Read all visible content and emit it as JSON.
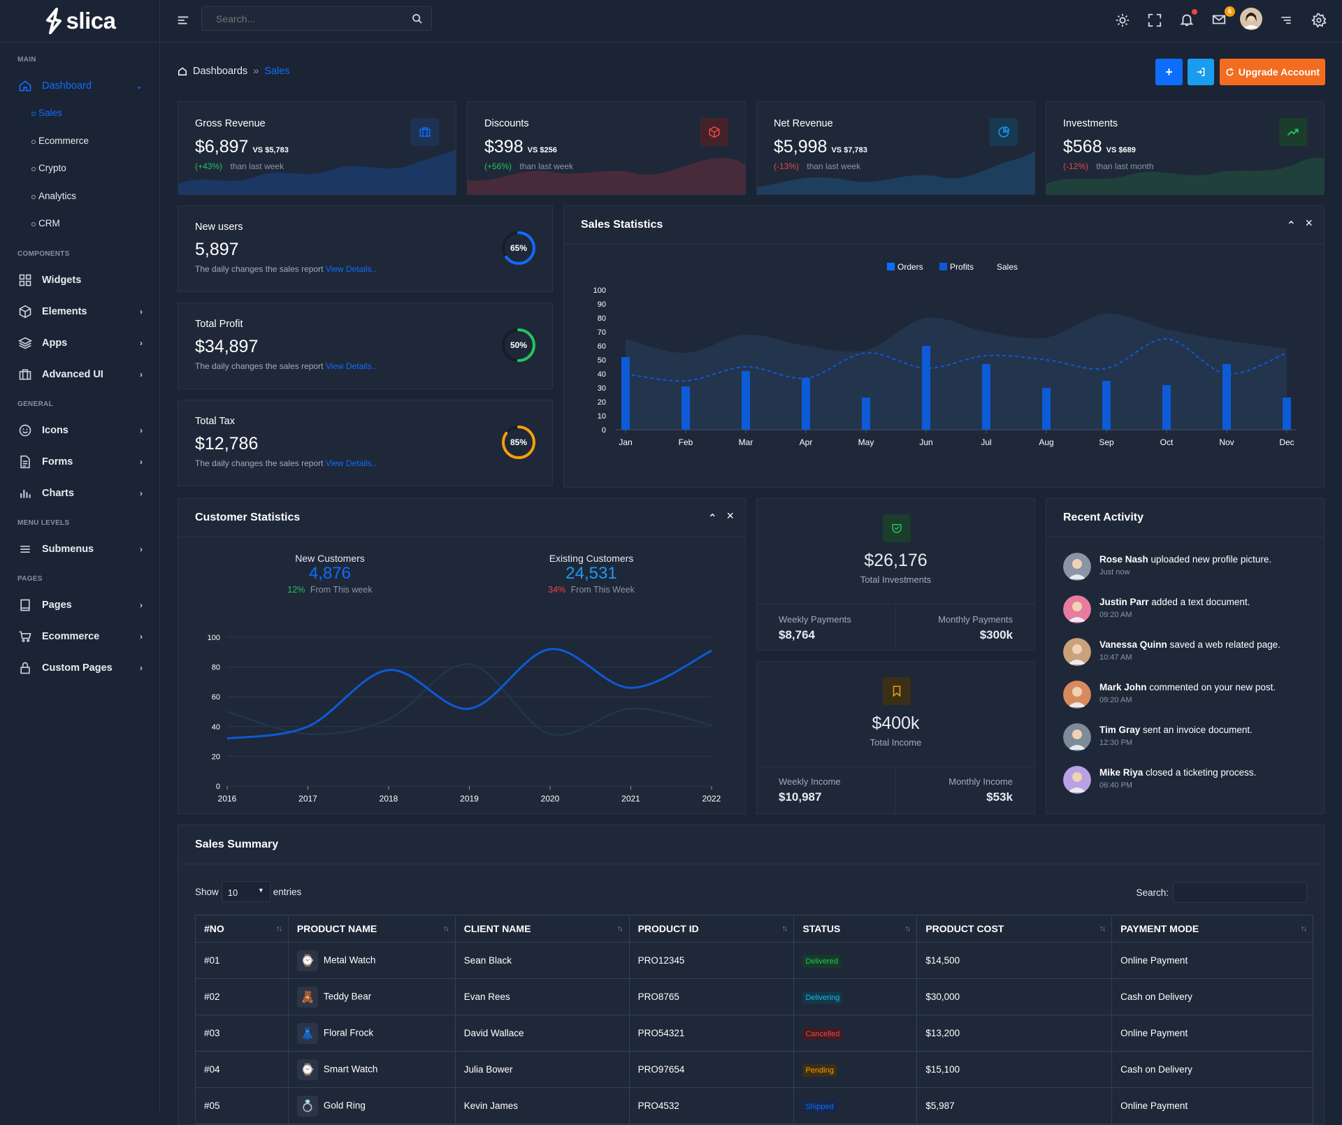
{
  "brand": {
    "name": "slica"
  },
  "search": {
    "placeholder": "Search..."
  },
  "header": {
    "notif_count": "",
    "mail_count": "6"
  },
  "sidebar": {
    "categories": [
      "MAIN",
      "COMPONENTS",
      "GENERAL",
      "MENU LEVELS",
      "PAGES"
    ],
    "dashboard": "Dashboard",
    "sub": [
      "Sales",
      "Ecommerce",
      "Crypto",
      "Analytics",
      "CRM"
    ],
    "items": [
      "Widgets",
      "Elements",
      "Apps",
      "Advanced UI",
      "Icons",
      "Forms",
      "Charts",
      "Submenus",
      "Pages",
      "Ecommerce",
      "Custom Pages"
    ]
  },
  "breadcrumb": {
    "root": "Dashboards",
    "current": "Sales"
  },
  "actions": {
    "upgrade": "Upgrade Account",
    "add": "+"
  },
  "kpis": [
    {
      "label": "Gross Revenue",
      "value": "$6,897",
      "vs": "VS $5,783",
      "change": "(+43%)",
      "period": "than last week",
      "color": "#0d6efd"
    },
    {
      "label": "Discounts",
      "value": "$398",
      "vs": "VS $256",
      "change": "(+56%)",
      "period": "than last week",
      "color": "#dc3545"
    },
    {
      "label": "Net Revenue",
      "value": "$5,998",
      "vs": "VS $7,783",
      "change": "(-13%)",
      "period": "than last week",
      "color": "#1a9cf0"
    },
    {
      "label": "Investments",
      "value": "$568",
      "vs": "VS $689",
      "change": "(-12%)",
      "period": "than last month",
      "color": "#28a745"
    }
  ],
  "stats": [
    {
      "label": "New users",
      "value": "5,897",
      "desc": "The daily changes the sales report",
      "link": "View Details..",
      "pct": "65%",
      "fraction": 0.65,
      "color": "#0d6efd"
    },
    {
      "label": "Total Profit",
      "value": "$34,897",
      "desc": "The daily changes the sales report",
      "link": "View Details..",
      "pct": "50%",
      "fraction": 0.5,
      "color": "#22c55e"
    },
    {
      "label": "Total Tax",
      "value": "$12,786",
      "desc": "The daily changes the sales report",
      "link": "View Details..",
      "pct": "85%",
      "fraction": 0.85,
      "color": "#f59e0b"
    }
  ],
  "sales_statistics": {
    "title": "Sales Statistics"
  },
  "customer_statistics": {
    "title": "Customer Statistics",
    "new_label": "New Customers",
    "new_value": "4,876",
    "new_change": "12%",
    "new_period": "From This week",
    "exist_label": "Existing Customers",
    "exist_value": "24,531",
    "exist_change": "34%",
    "exist_period": "From This Week"
  },
  "investments_card": {
    "value": "$26,176",
    "label": "Total Investments",
    "weekly_label": "Weekly Payments",
    "weekly_value": "$8,764",
    "monthly_label": "Monthly Payments",
    "monthly_value": "$300k"
  },
  "income_card": {
    "value": "$400k",
    "label": "Total Income",
    "weekly_label": "Weekly Income",
    "weekly_value": "$10,987",
    "monthly_label": "Monthly Income",
    "monthly_value": "$53k"
  },
  "recent_activity": {
    "title": "Recent Activity",
    "items": [
      {
        "name": "Rose Nash",
        "action": "uploaded new profile picture.",
        "time": "Just now",
        "color": "#8b95a6"
      },
      {
        "name": "Justin Parr",
        "action": "added a text document.",
        "time": "09:20 AM",
        "color": "#e87ca0"
      },
      {
        "name": "Vanessa Quinn",
        "action": "saved a web related page.",
        "time": "10:47 AM",
        "color": "#c9a27c"
      },
      {
        "name": "Mark John",
        "action": "commented on your new post.",
        "time": "09:20 AM",
        "color": "#d98a5c"
      },
      {
        "name": "Tim Gray",
        "action": "sent an invoice document.",
        "time": "12:30 PM",
        "color": "#7e8b99"
      },
      {
        "name": "Mike Riya",
        "action": "closed a ticketing process.",
        "time": "06:40 PM",
        "color": "#b9a2e4"
      }
    ]
  },
  "sales_summary": {
    "title": "Sales Summary",
    "show": "Show",
    "entries_value": "10",
    "entries": "entries",
    "search_label": "Search:",
    "columns": [
      "#NO",
      "PRODUCT NAME",
      "CLIENT NAME",
      "PRODUCT ID",
      "STATUS",
      "PRODUCT COST",
      "PAYMENT MODE"
    ],
    "rows": [
      {
        "no": "#01",
        "product": "Metal Watch",
        "icon": "⌚",
        "client": "Sean Black",
        "pid": "PRO12345",
        "status": "Delivered",
        "status_color": "#22c55e",
        "status_bg": "#173a2a",
        "cost": "$14,500",
        "payment": "Online Payment"
      },
      {
        "no": "#02",
        "product": "Teddy Bear",
        "icon": "🧸",
        "client": "Evan Rees",
        "pid": "PRO8765",
        "status": "Delivering",
        "status_color": "#22b8e6",
        "status_bg": "#123848",
        "cost": "$30,000",
        "payment": "Cash on Delivery"
      },
      {
        "no": "#03",
        "product": "Floral Frock",
        "icon": "👗",
        "client": "David Wallace",
        "pid": "PRO54321",
        "status": "Cancelled",
        "status_color": "#ef4444",
        "status_bg": "#3d1d24",
        "cost": "$13,200",
        "payment": "Online Payment"
      },
      {
        "no": "#04",
        "product": "Smart Watch",
        "icon": "⌚",
        "client": "Julia Bower",
        "pid": "PRO97654",
        "status": "Pending",
        "status_color": "#f59e0b",
        "status_bg": "#3b2f17",
        "cost": "$15,100",
        "payment": "Cash on Delivery"
      },
      {
        "no": "#05",
        "product": "Gold Ring",
        "icon": "💍",
        "client": "Kevin James",
        "pid": "PRO4532",
        "status": "Shipped",
        "status_color": "#0d6efd",
        "status_bg": "#16274a",
        "cost": "$5,987",
        "payment": "Online Payment"
      }
    ]
  },
  "chart_data": [
    {
      "type": "bar",
      "title": "Sales Statistics",
      "categories": [
        "Jan",
        "Feb",
        "Mar",
        "Apr",
        "May",
        "Jun",
        "Jul",
        "Aug",
        "Sep",
        "Oct",
        "Nov",
        "Dec"
      ],
      "ylim": [
        0,
        100
      ],
      "yticks": [
        0,
        10,
        20,
        30,
        40,
        50,
        60,
        70,
        80,
        90,
        100
      ],
      "legend": [
        "Orders",
        "Profits",
        "Sales"
      ],
      "series": [
        {
          "name": "Orders",
          "kind": "bar",
          "values": [
            52,
            31,
            42,
            37,
            23,
            60,
            47,
            30,
            35,
            32,
            47,
            23
          ]
        },
        {
          "name": "Profits",
          "kind": "area",
          "values": [
            65,
            55,
            68,
            60,
            57,
            80,
            70,
            66,
            83,
            72,
            64,
            58
          ]
        },
        {
          "name": "Sales",
          "kind": "dashed-line",
          "values": [
            40,
            35,
            45,
            37,
            55,
            44,
            53,
            50,
            44,
            65,
            40,
            55
          ]
        }
      ]
    },
    {
      "type": "line",
      "title": "Customer Statistics",
      "x": [
        "2016",
        "2017",
        "2018",
        "2019",
        "2020",
        "2021",
        "2022"
      ],
      "ylim": [
        0,
        100
      ],
      "yticks": [
        0,
        20,
        40,
        60,
        80,
        100
      ],
      "series": [
        {
          "name": "New Customers",
          "values": [
            32,
            40,
            78,
            52,
            92,
            66,
            91
          ]
        },
        {
          "name": "Existing Customers",
          "values": [
            50,
            35,
            45,
            82,
            35,
            52,
            41
          ]
        }
      ]
    }
  ]
}
